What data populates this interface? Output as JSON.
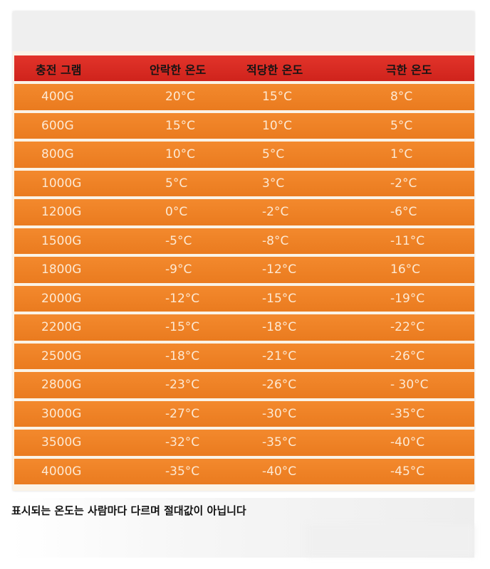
{
  "table": {
    "headers": [
      "충전 그램",
      "안락한 온도",
      "적당한 온도",
      "극한 온도"
    ],
    "rows": [
      [
        "400G",
        "20°C",
        "15°C",
        "8°C"
      ],
      [
        "600G",
        "15°C",
        "10°C",
        "5°C"
      ],
      [
        "800G",
        "10°C",
        "5°C",
        "1°C"
      ],
      [
        "1000G",
        "5°C",
        "3°C",
        "-2°C"
      ],
      [
        "1200G",
        "0°C",
        "-2°C",
        "-6°C"
      ],
      [
        "1500G",
        "-5°C",
        "-8°C",
        "-11°C"
      ],
      [
        "1800G",
        "-9°C",
        "-12°C",
        "16°C"
      ],
      [
        "2000G",
        "-12°C",
        "-15°C",
        "-19°C"
      ],
      [
        "2200G",
        "-15°C",
        "-18°C",
        "-22°C"
      ],
      [
        "2500G",
        "-18°C",
        "-21°C",
        "-26°C"
      ],
      [
        "2800G",
        "-23°C",
        "-26°C",
        "- 30°C"
      ],
      [
        "3000G",
        "-27°C",
        "-30°C",
        "-35°C"
      ],
      [
        "3500G",
        "-32°C",
        "-35°C",
        "-40°C"
      ],
      [
        "4000G",
        "-35°C",
        "-40°C",
        "-45°C"
      ]
    ]
  },
  "note": "표시되는 온도는 사람마다 다르며 절대값이 아닙니다",
  "colors": {
    "header_bg": "#d82a22",
    "row_bg": "#ef8326",
    "row_text": "#fde9d3"
  }
}
